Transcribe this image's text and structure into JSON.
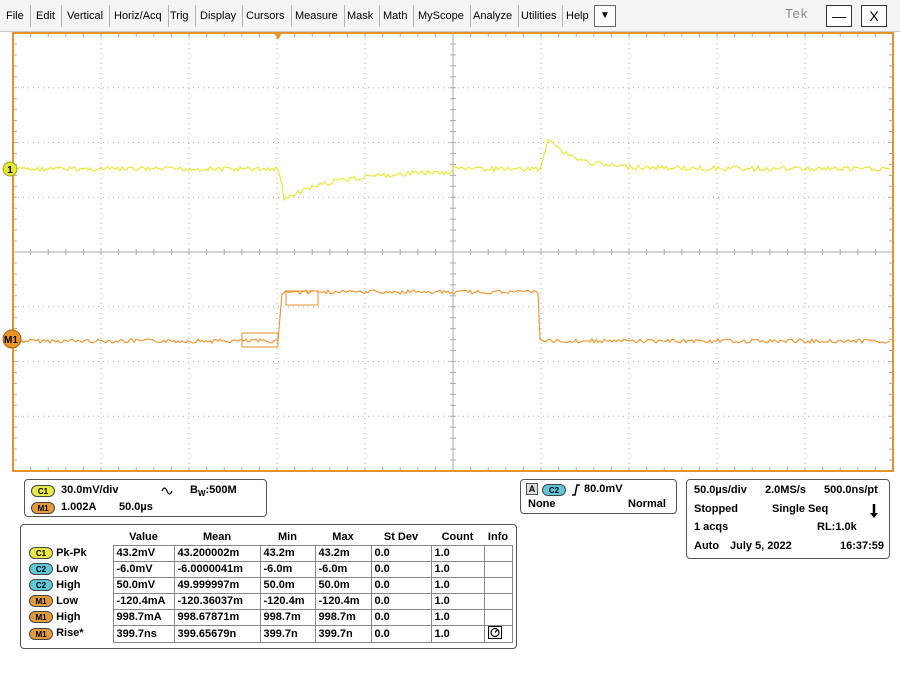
{
  "menubar": {
    "items": [
      "File",
      "Edit",
      "Vertical",
      "Horiz/Acq",
      "Trig",
      "Display",
      "Cursors",
      "Measure",
      "Mask",
      "Math",
      "MyScope",
      "Analyze",
      "Utilities",
      "Help"
    ],
    "dropdown": "▼",
    "logo": "Tek",
    "minimize": "—",
    "close": "X"
  },
  "scope": {
    "ch1_marker": "1",
    "m1_marker": "M1",
    "colors": {
      "ch1": "#e6e62e",
      "m1": "#e8922a",
      "grid": "#a8a8a8",
      "frame": "#e8922a"
    }
  },
  "channel_panel": {
    "c1_label": "C1",
    "c1_scale": "30.0mV/div",
    "bw_label": "B",
    "bw_sub": "W",
    "bw_value": ":500M",
    "m1_label": "M1",
    "m1_scale": "1.002A",
    "m1_time": "50.0µs"
  },
  "trigger_panel": {
    "a_label": "A",
    "c2_label": "C2",
    "level": "80.0mV",
    "coupling": "None",
    "mode": "Normal"
  },
  "acq_panel": {
    "time_div": "50.0µs/div",
    "sample_rate": "2.0MS/s",
    "resolution": "500.0ns/pt",
    "state": "Stopped",
    "seq": "Single Seq",
    "acqs": "1 acqs",
    "rl": "RL:1.0k",
    "mode": "Auto",
    "date": "July 5, 2022",
    "time": "16:37:59"
  },
  "measurements": {
    "headers": [
      "Value",
      "Mean",
      "Min",
      "Max",
      "St Dev",
      "Count",
      "Info"
    ],
    "rows": [
      {
        "src": "C1",
        "pill": "c1",
        "name": "Pk-Pk",
        "value": "43.2mV",
        "mean": "43.200002m",
        "min": "43.2m",
        "max": "43.2m",
        "stdev": "0.0",
        "count": "1.0"
      },
      {
        "src": "C2",
        "pill": "c2",
        "name": "Low",
        "value": "-6.0mV",
        "mean": "-6.0000041m",
        "min": "-6.0m",
        "max": "-6.0m",
        "stdev": "0.0",
        "count": "1.0"
      },
      {
        "src": "C2",
        "pill": "c2",
        "name": "High",
        "value": "50.0mV",
        "mean": "49.999997m",
        "min": "50.0m",
        "max": "50.0m",
        "stdev": "0.0",
        "count": "1.0"
      },
      {
        "src": "M1",
        "pill": "m1",
        "name": "Low",
        "value": "-120.4mA",
        "mean": "-120.36037m",
        "min": "-120.4m",
        "max": "-120.4m",
        "stdev": "0.0",
        "count": "1.0"
      },
      {
        "src": "M1",
        "pill": "m1",
        "name": "High",
        "value": "998.7mA",
        "mean": "998.67871m",
        "min": "998.7m",
        "max": "998.7m",
        "stdev": "0.0",
        "count": "1.0"
      },
      {
        "src": "M1",
        "pill": "m1",
        "name": "Rise*",
        "value": "399.7ns",
        "mean": "399.65679n",
        "min": "399.7n",
        "max": "399.7n",
        "stdev": "0.0",
        "count": "1.0"
      }
    ]
  }
}
